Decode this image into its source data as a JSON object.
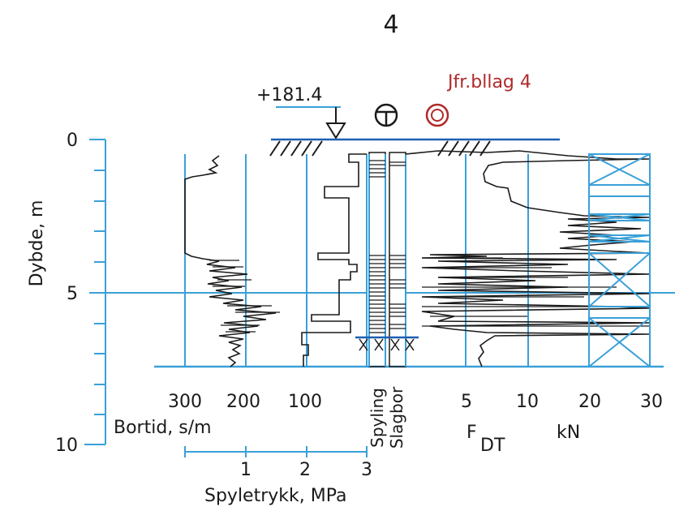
{
  "page_number": "4",
  "elevation_label": "+181.4",
  "reference_label": "Jfr.bllag 4",
  "depth_axis": {
    "label": "Dybde,  m",
    "ticks": [
      "0",
      "5",
      "10"
    ]
  },
  "bortid_axis": {
    "ticks": [
      "300",
      "200",
      "100"
    ],
    "label": "Bortid,  s/m"
  },
  "spyletrykk_axis": {
    "ticks": [
      "1",
      "2",
      "3"
    ],
    "label": "Spyletrykk,  MPa"
  },
  "column_labels": {
    "spyling": "Spyling",
    "slagboring": "Slagbor"
  },
  "force_axis": {
    "ticks": [
      "5",
      "10",
      "20",
      "30"
    ],
    "label_main": "F",
    "label_sub": "DT",
    "unit": "kN"
  }
}
